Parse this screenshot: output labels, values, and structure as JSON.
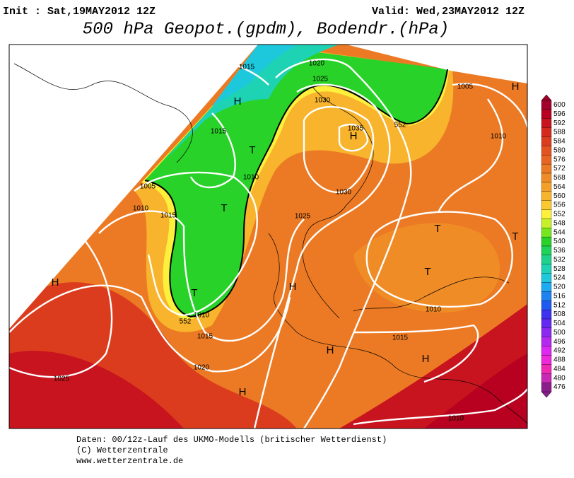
{
  "header": {
    "init": "Init : Sat,19MAY2012 12Z",
    "valid": "Valid: Wed,23MAY2012 12Z",
    "title": "500 hPa Geopot.(gpdm), Bodendr.(hPa)"
  },
  "map": {
    "labels": [
      "1015",
      "1020",
      "1025",
      "1030",
      "1035",
      "552",
      "1005",
      "H",
      "H",
      "1015",
      "T",
      "H",
      "1010",
      "1010",
      "1005",
      "1010",
      "1015",
      "T",
      "1030",
      "1025",
      "T",
      "T",
      "H",
      "H",
      "T",
      "T",
      "1010",
      "552",
      "1015",
      "1010",
      "1015",
      "H",
      "H",
      "1020",
      "H",
      "1025",
      "1010"
    ]
  },
  "legend": {
    "labels": [
      600,
      596,
      592,
      588,
      584,
      580,
      576,
      572,
      568,
      564,
      560,
      556,
      552,
      548,
      544,
      540,
      536,
      532,
      528,
      524,
      520,
      516,
      512,
      508,
      504,
      500,
      496,
      492,
      488,
      484,
      480,
      476
    ],
    "colors": [
      "#a0002a",
      "#b80020",
      "#c8141e",
      "#d42a1e",
      "#dc3c1e",
      "#e45220",
      "#e86422",
      "#ec7a24",
      "#f08c26",
      "#f4a028",
      "#f8b42c",
      "#fcc830",
      "#fcf03c",
      "#c8f028",
      "#78e61e",
      "#28d228",
      "#1ed25a",
      "#1ed28c",
      "#1ed2b4",
      "#1ec8dc",
      "#1eaaf0",
      "#1e82f0",
      "#1e5af0",
      "#3c32f0",
      "#6428f0",
      "#8c28f0",
      "#b428f0",
      "#dc28f0",
      "#f028dc",
      "#f028b4",
      "#c828b4",
      "#8c1e8c"
    ]
  },
  "footer": {
    "lines": [
      "Daten: 00/12z-Lauf des UKMO-Modells (britischer Wetterdienst)",
      "(C) Wetterzentrale",
      "www.wetterzentrale.de"
    ]
  }
}
